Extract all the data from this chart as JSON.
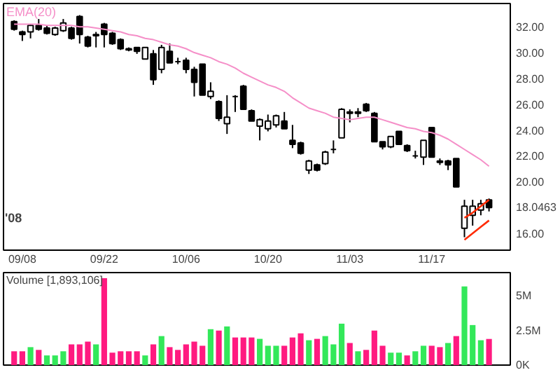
{
  "chart_data": [
    {
      "type": "candlestick",
      "categories": [
        null,
        "09/08",
        null,
        null,
        null,
        null,
        null,
        null,
        null,
        null,
        null,
        "09/22",
        null,
        null,
        null,
        null,
        null,
        null,
        null,
        null,
        null,
        "10/06",
        null,
        null,
        null,
        null,
        null,
        null,
        null,
        null,
        null,
        "10/20",
        null,
        null,
        null,
        null,
        null,
        null,
        null,
        null,
        null,
        "11/03",
        null,
        null,
        null,
        null,
        null,
        null,
        null,
        null,
        null,
        "11/17",
        null,
        null,
        null,
        null,
        null,
        null,
        null
      ],
      "ohlc": [
        [
          32.4,
          32.5,
          31.7,
          31.8
        ],
        [
          31.6,
          31.7,
          30.9,
          31.4
        ],
        [
          31.6,
          32.2,
          31.1,
          32.1
        ],
        [
          32.1,
          32.6,
          31.7,
          31.8
        ],
        [
          31.9,
          32.1,
          31.4,
          31.5
        ],
        [
          31.4,
          32.0,
          31.3,
          31.9
        ],
        [
          31.7,
          32.6,
          31.6,
          32.3
        ],
        [
          31.9,
          32.0,
          31.0,
          31.1
        ],
        [
          32.8,
          32.9,
          30.7,
          31.4
        ],
        [
          31.2,
          31.3,
          30.4,
          30.5
        ],
        [
          31.4,
          31.6,
          30.4,
          31.3
        ],
        [
          32.2,
          32.3,
          30.4,
          31.4
        ],
        [
          31.5,
          31.6,
          30.6,
          30.7
        ],
        [
          31.0,
          31.1,
          30.2,
          30.3
        ],
        [
          30.3,
          30.4,
          30.1,
          30.2
        ],
        [
          30.4,
          30.4,
          29.9,
          30.1
        ],
        [
          29.5,
          30.4,
          29.5,
          30.4
        ],
        [
          29.9,
          30.2,
          27.5,
          27.9
        ],
        [
          28.7,
          30.6,
          28.4,
          30.4
        ],
        [
          30.1,
          30.7,
          29.2,
          29.2
        ],
        [
          29.3,
          29.6,
          29.1,
          29.3
        ],
        [
          29.4,
          29.6,
          28.4,
          28.7
        ],
        [
          28.7,
          28.9,
          26.6,
          27.7
        ],
        [
          29.1,
          29.1,
          26.7,
          26.7
        ],
        [
          26.6,
          27.7,
          26.4,
          27.0
        ],
        [
          26.2,
          26.3,
          24.7,
          24.9
        ],
        [
          24.5,
          26.7,
          23.7,
          25.0
        ],
        [
          26.6,
          26.7,
          25.4,
          26.6
        ],
        [
          27.4,
          27.5,
          25.6,
          25.6
        ],
        [
          25.5,
          25.6,
          24.7,
          24.7
        ],
        [
          24.3,
          24.9,
          23.2,
          24.8
        ],
        [
          24.1,
          25.2,
          23.9,
          24.7
        ],
        [
          24.4,
          25.2,
          24.2,
          25.1
        ],
        [
          24.7,
          25.4,
          24.1,
          24.1
        ],
        [
          23.2,
          24.4,
          22.6,
          22.9
        ],
        [
          23.0,
          23.1,
          22.1,
          22.2
        ],
        [
          20.9,
          21.7,
          20.6,
          21.6
        ],
        [
          21.3,
          21.4,
          20.8,
          20.9
        ],
        [
          21.4,
          22.4,
          21.3,
          22.3
        ],
        [
          22.5,
          23.2,
          22.2,
          22.5
        ],
        [
          23.4,
          25.7,
          23.4,
          25.6
        ],
        [
          25.3,
          25.6,
          24.6,
          25.4
        ],
        [
          25.4,
          25.7,
          25.0,
          25.3
        ],
        [
          26.0,
          26.1,
          25.4,
          25.5
        ],
        [
          25.3,
          25.4,
          23.1,
          23.1
        ],
        [
          23.1,
          23.1,
          22.5,
          22.7
        ],
        [
          22.7,
          23.5,
          22.6,
          23.5
        ],
        [
          23.9,
          23.9,
          22.9,
          22.9
        ],
        [
          22.8,
          22.9,
          22.3,
          22.4
        ],
        [
          22.0,
          22.4,
          21.8,
          22.0
        ],
        [
          21.9,
          23.2,
          21.3,
          23.2
        ],
        [
          24.2,
          24.2,
          21.9,
          21.9
        ],
        [
          21.6,
          21.8,
          21.3,
          21.5
        ],
        [
          21.6,
          21.7,
          20.9,
          21.3
        ],
        [
          21.8,
          21.8,
          19.6,
          19.6
        ],
        [
          16.4,
          18.6,
          15.7,
          18.1
        ],
        [
          17.4,
          18.6,
          16.6,
          18.1
        ],
        [
          17.8,
          18.6,
          17.4,
          18.3
        ],
        [
          18.6,
          18.7,
          17.7,
          18.0
        ]
      ],
      "colors": [
        "#000000",
        "#000000",
        "#ffffff",
        "#000000",
        "#000000",
        "#ffffff",
        "#ffffff",
        "#000000",
        "#000000",
        "#000000",
        "#000000",
        "#000000",
        "#000000",
        "#000000",
        "#000000",
        "#000000",
        "#ffffff",
        "#000000",
        "#ffffff",
        "#000000",
        "#000000",
        "#000000",
        "#000000",
        "#000000",
        "#ffffff",
        "#000000",
        "#ffffff",
        "#000000",
        "#000000",
        "#000000",
        "#ffffff",
        "#ffffff",
        "#ffffff",
        "#000000",
        "#000000",
        "#000000",
        "#ffffff",
        "#000000",
        "#ffffff",
        "#000000",
        "#ffffff",
        "#ffffff",
        "#000000",
        "#000000",
        "#000000",
        "#000000",
        "#ffffff",
        "#000000",
        "#000000",
        "#000000",
        "#ffffff",
        "#000000",
        "#000000",
        "#000000",
        "#000000",
        "#ffffff",
        "#ffffff",
        "#ffffff",
        "#000000"
      ],
      "series": [
        {
          "name": "EMA(20)",
          "type": "line",
          "color": "#f58fc8",
          "values": [
            32.2,
            32.2,
            32.2,
            32.2,
            32.1,
            32.1,
            32.1,
            32.1,
            32.0,
            32.0,
            31.9,
            31.8,
            31.7,
            31.6,
            31.4,
            31.3,
            31.1,
            31.0,
            30.8,
            30.6,
            30.5,
            30.3,
            30.0,
            29.8,
            29.6,
            29.3,
            29.1,
            28.8,
            28.4,
            28.1,
            27.8,
            27.5,
            27.3,
            27.0,
            26.5,
            26.1,
            25.7,
            25.5,
            25.3,
            25.0,
            24.9,
            24.8,
            24.9,
            25.0,
            25.0,
            24.8,
            24.6,
            24.4,
            24.2,
            24.1,
            23.9,
            23.8,
            23.6,
            23.3,
            22.9,
            22.5,
            22.1,
            21.7,
            21.2
          ]
        },
        {
          "type": "line",
          "color": "#ff2a00",
          "values": [
            null,
            null,
            null,
            null,
            null,
            null,
            null,
            null,
            null,
            null,
            null,
            null,
            null,
            null,
            null,
            null,
            null,
            null,
            null,
            null,
            null,
            null,
            null,
            null,
            null,
            null,
            null,
            null,
            null,
            null,
            null,
            null,
            null,
            null,
            null,
            null,
            null,
            null,
            null,
            null,
            null,
            null,
            null,
            null,
            null,
            null,
            null,
            null,
            null,
            null,
            null,
            null,
            null,
            null,
            null,
            17.2,
            17.6,
            18.1,
            18.6
          ]
        },
        {
          "type": "line",
          "color": "#ff2a00",
          "values": [
            null,
            null,
            null,
            null,
            null,
            null,
            null,
            null,
            null,
            null,
            null,
            null,
            null,
            null,
            null,
            null,
            null,
            null,
            null,
            null,
            null,
            null,
            null,
            null,
            null,
            null,
            null,
            null,
            null,
            null,
            null,
            null,
            null,
            null,
            null,
            null,
            null,
            null,
            null,
            null,
            null,
            null,
            null,
            null,
            null,
            null,
            null,
            null,
            null,
            null,
            null,
            null,
            null,
            null,
            null,
            15.5,
            16.0,
            16.5,
            17.0
          ]
        }
      ],
      "ylim": [
        14.7,
        33.8
      ],
      "yticks": [
        {
          "value": 16,
          "label": "16.00"
        },
        {
          "value": 18.0463,
          "label": "18.0463"
        },
        {
          "value": 20,
          "label": "20.00"
        },
        {
          "value": 22,
          "label": "22.00"
        },
        {
          "value": 24,
          "label": "24.00"
        },
        {
          "value": 26,
          "label": "26.00"
        },
        {
          "value": 28,
          "label": "28.00"
        },
        {
          "value": 30,
          "label": "30.00"
        },
        {
          "value": 32,
          "label": "32.00"
        }
      ],
      "annotations": [
        "'08"
      ]
    },
    {
      "type": "bar",
      "title": "Volume [1,893,106]",
      "categories": [
        null,
        null,
        null,
        null,
        null,
        null,
        null,
        null,
        null,
        null,
        null,
        null,
        null,
        null,
        null,
        null,
        null,
        null,
        null,
        null,
        null,
        null,
        null,
        null,
        null,
        null,
        null,
        null,
        null,
        null,
        null,
        null,
        null,
        null,
        null,
        null,
        null,
        null,
        null,
        null,
        null,
        null,
        null,
        null,
        null,
        null,
        null,
        null,
        null,
        null,
        null,
        null,
        null,
        null,
        null,
        null,
        null,
        null,
        null
      ],
      "values": [
        1000000,
        1000000,
        1300000,
        1100000,
        700000,
        700000,
        1000000,
        1500000,
        1500000,
        1700000,
        1500000,
        6300000,
        900000,
        1000000,
        1000000,
        1000000,
        700000,
        1500000,
        2100000,
        1300000,
        1100000,
        1500000,
        1700000,
        1400000,
        2600000,
        2500000,
        2800000,
        2000000,
        2000000,
        2000000,
        1900000,
        1400000,
        1400000,
        1400000,
        2000000,
        2300000,
        1800000,
        1900000,
        2100000,
        1500000,
        3000000,
        1600000,
        1000000,
        1100000,
        2500000,
        1400000,
        900000,
        900000,
        700000,
        1000000,
        1400000,
        1400000,
        1300000,
        1600000,
        2100000,
        5700000,
        2900000,
        1800000,
        1893106
      ],
      "colors": [
        "#ff1a80",
        "#ff1a80",
        "#33e85a",
        "#ff1a80",
        "#33e85a",
        "#33e85a",
        "#33e85a",
        "#ff1a80",
        "#ff1a80",
        "#ff1a80",
        "#33e85a",
        "#ff1a80",
        "#ff1a80",
        "#ff1a80",
        "#ff1a80",
        "#ff1a80",
        "#33e85a",
        "#ff1a80",
        "#33e85a",
        "#ff1a80",
        "#ff1a80",
        "#ff1a80",
        "#ff1a80",
        "#ff1a80",
        "#33e85a",
        "#ff1a80",
        "#33e85a",
        "#ff1a80",
        "#ff1a80",
        "#ff1a80",
        "#33e85a",
        "#33e85a",
        "#33e85a",
        "#ff1a80",
        "#ff1a80",
        "#ff1a80",
        "#33e85a",
        "#ff1a80",
        "#33e85a",
        "#33e85a",
        "#33e85a",
        "#ff1a80",
        "#33e85a",
        "#ff1a80",
        "#ff1a80",
        "#ff1a80",
        "#33e85a",
        "#33e85a",
        "#ff1a80",
        "#33e85a",
        "#33e85a",
        "#ff1a80",
        "#ff1a80",
        "#33e85a",
        "#ff1a80",
        "#33e85a",
        "#33e85a",
        "#33e85a",
        "#ff1a80"
      ],
      "ylim": [
        0,
        6700000
      ],
      "yticks": [
        {
          "value": 0,
          "label": "0K"
        },
        {
          "value": 2500000,
          "label": "2.5M"
        },
        {
          "value": 5000000,
          "label": "5M"
        }
      ],
      "tick_labels": "y"
    }
  ]
}
